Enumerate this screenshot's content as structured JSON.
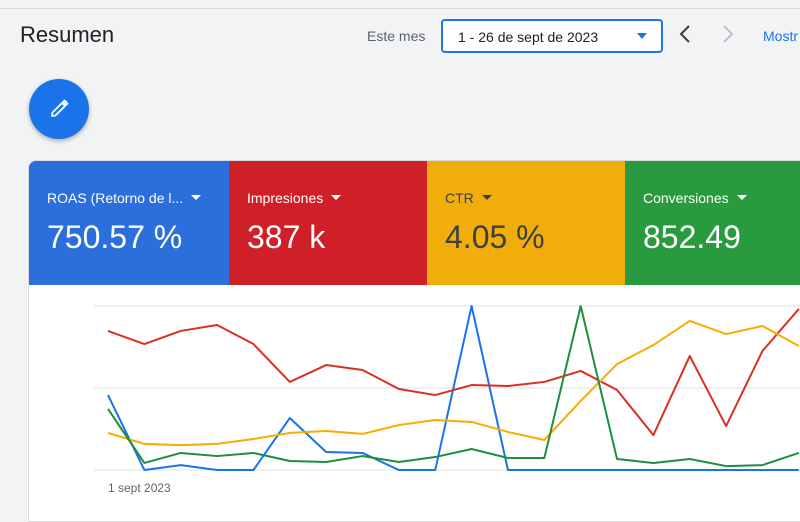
{
  "header": {
    "title": "Resumen",
    "period_label": "Este mes",
    "date_range": "1 - 26 de sept de 2023",
    "show_link": "Mostr"
  },
  "cards": [
    {
      "label": "ROAS (Retorno de l...",
      "value": "750.57 %",
      "color": "#2a6fdb",
      "text_color": "#ffffff"
    },
    {
      "label": "Impresiones",
      "value": "387 k",
      "color": "#cf1f29",
      "text_color": "#ffffff"
    },
    {
      "label": "CTR",
      "value": "4.05 %",
      "color": "#f1ae0b",
      "text_color": "#3c4043"
    },
    {
      "label": "Conversiones",
      "value": "852.49",
      "color": "#2a9a3f",
      "text_color": "#ffffff"
    }
  ],
  "chart_data": {
    "type": "line",
    "categories": [
      "1 sept 2023",
      null,
      null,
      null,
      null,
      null,
      null,
      null,
      null,
      null,
      null,
      null,
      null,
      null,
      null,
      null,
      null,
      null,
      null,
      null
    ],
    "ylim": [
      0,
      100
    ],
    "gridlines": [
      0,
      50,
      100
    ],
    "series": [
      {
        "color": "#1a73e8",
        "values": [
          45.7,
          0,
          3,
          0,
          0,
          31.7,
          11,
          10.4,
          0,
          0,
          100,
          0,
          0,
          0,
          0,
          0,
          0,
          0,
          0,
          0
        ]
      },
      {
        "color": "#d93025",
        "values": [
          84.8,
          76.8,
          84.8,
          88.4,
          76.8,
          53.7,
          64,
          61,
          49.4,
          45.7,
          51.8,
          51.2,
          53.7,
          60.4,
          48.8,
          21.3,
          69.5,
          26.8,
          72.6,
          98.2
        ]
      },
      {
        "color": "#f9ab00",
        "values": [
          22.6,
          15.9,
          15.2,
          15.9,
          18.9,
          22.6,
          23.8,
          22,
          27.4,
          30.5,
          29.3,
          23.2,
          18.3,
          42.1,
          64.6,
          76.2,
          90.9,
          82.9,
          87.8,
          75.6
        ]
      },
      {
        "color": "#1e8e3e",
        "values": [
          37.2,
          4.3,
          10.4,
          8.5,
          10.4,
          5.5,
          4.9,
          8.5,
          4.9,
          7.9,
          12.8,
          7.3,
          7.3,
          100,
          6.7,
          4.3,
          6.7,
          2.4,
          3,
          10.4
        ]
      }
    ]
  }
}
